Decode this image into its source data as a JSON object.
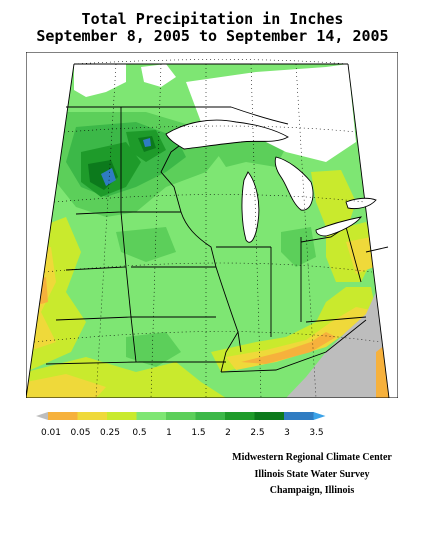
{
  "title_line1": "Total Precipitation in Inches",
  "title_line2": "September 8, 2005 to September 14, 2005",
  "legend": {
    "labels": [
      "0.01",
      "0.05",
      "0.25",
      "0.5",
      "1",
      "1.5",
      "2",
      "2.5",
      "3",
      "3.5"
    ],
    "colors": [
      "#bdbdbd",
      "#f6b13c",
      "#efd93a",
      "#c9ea2d",
      "#7ee673",
      "#5ccf5a",
      "#3cb848",
      "#1e9b2a",
      "#0c7a1c",
      "#2f7cc2",
      "#3aa2e8"
    ]
  },
  "credits": [
    "Midwestern Regional Climate Center",
    "Illinois State Water Survey",
    "Champaign, Illinois"
  ]
}
